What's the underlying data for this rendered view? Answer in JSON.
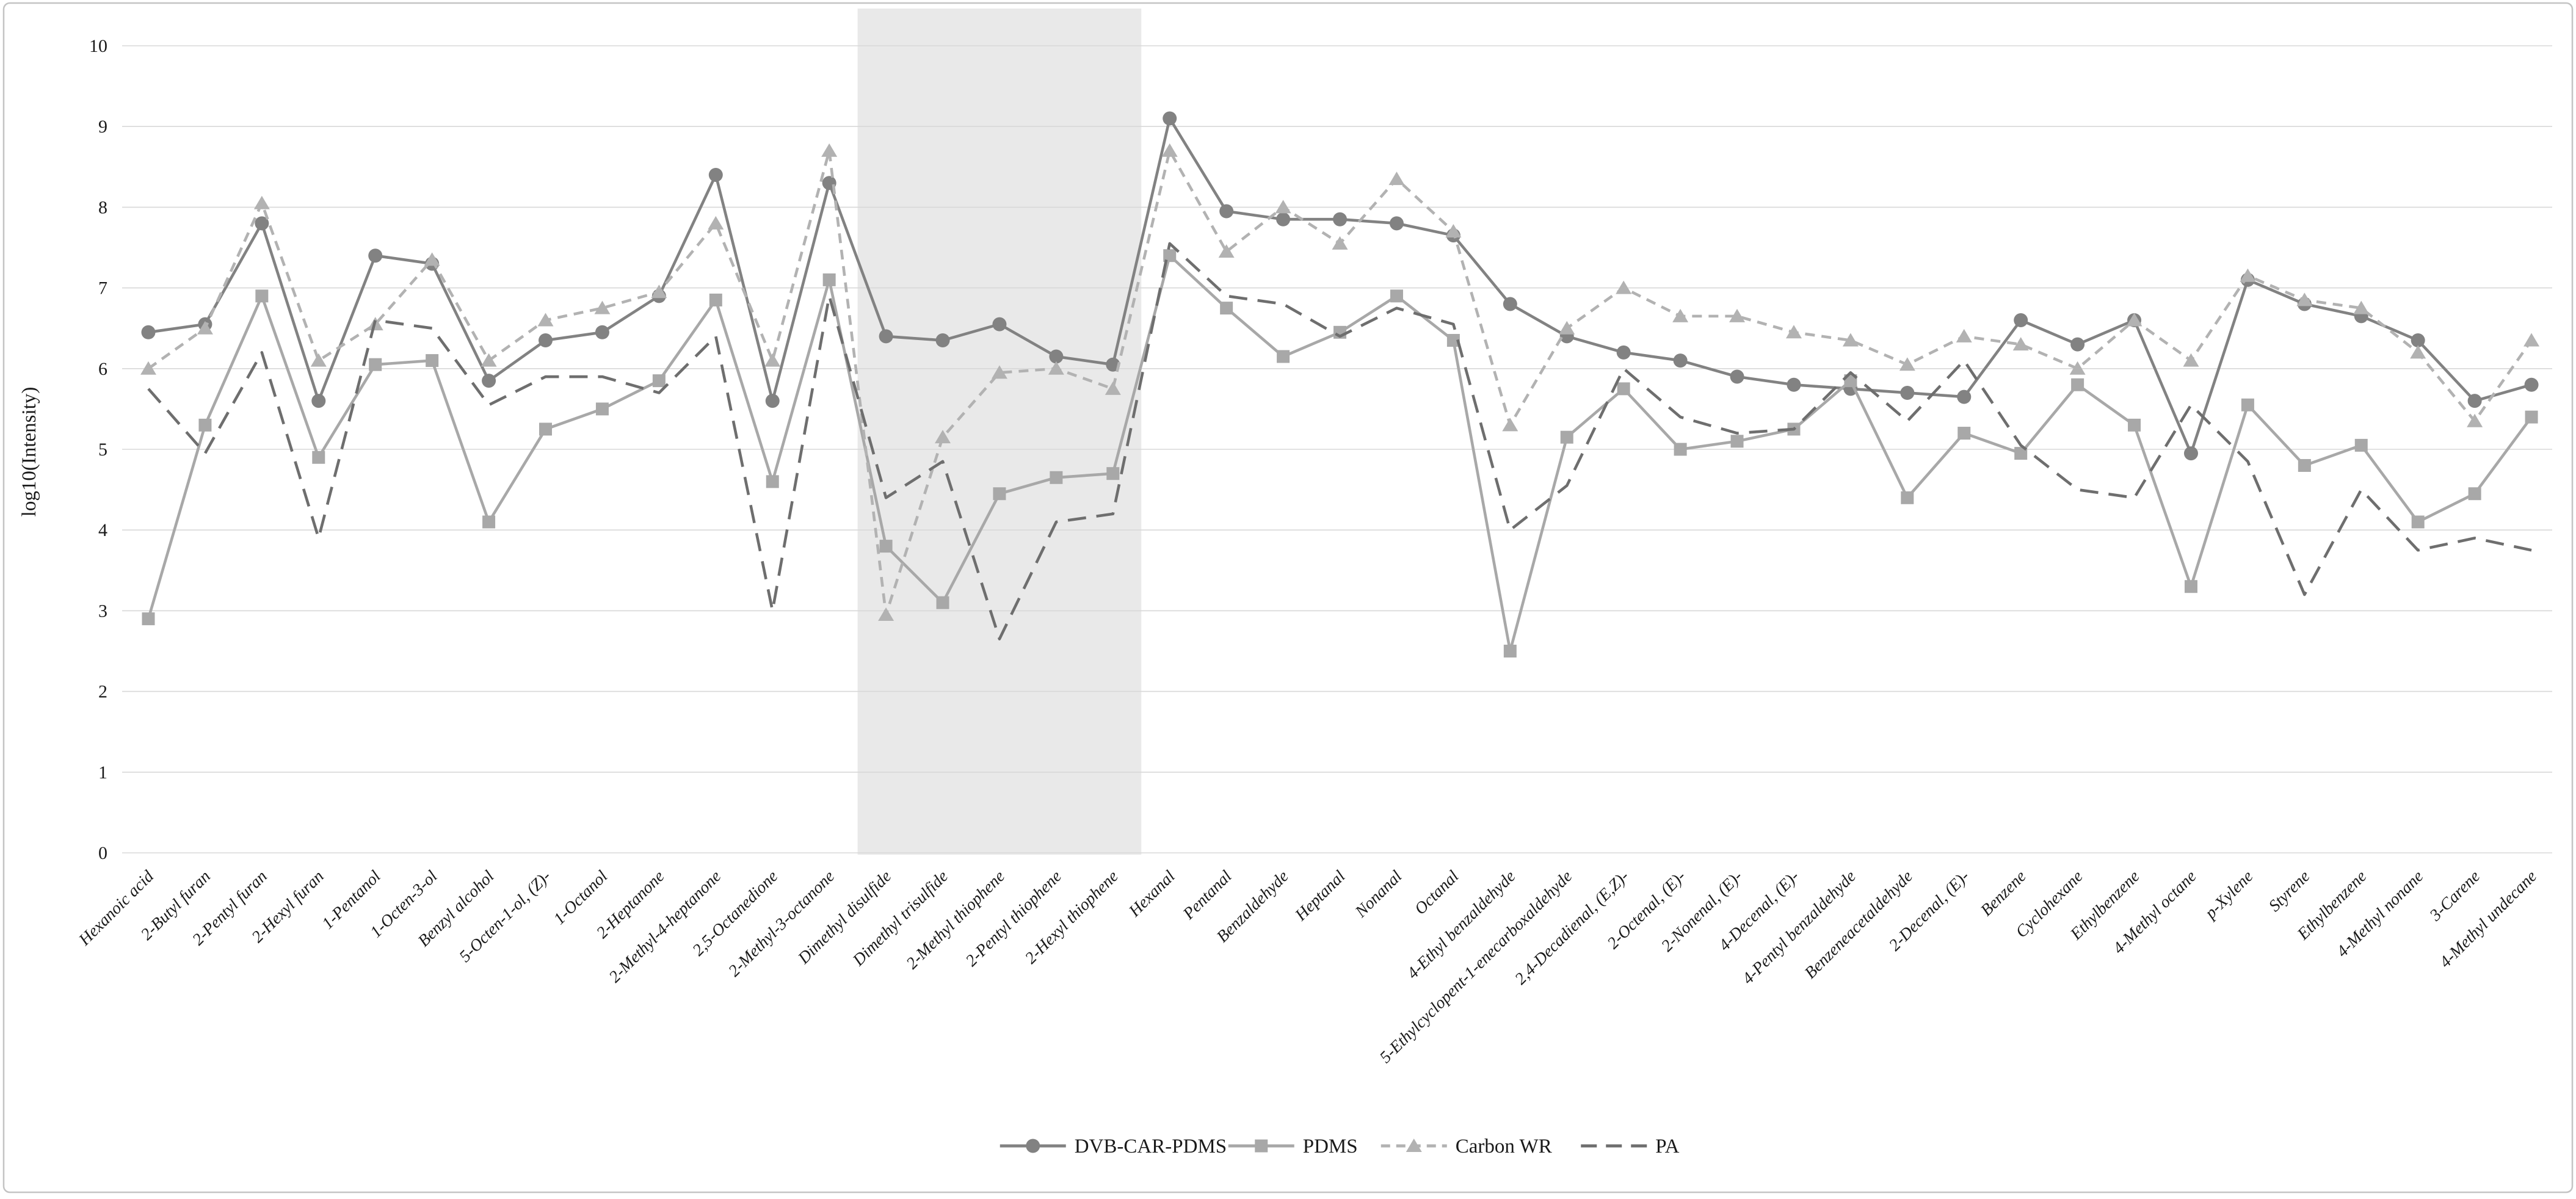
{
  "frame": {
    "border_color": "#c4c4c4",
    "background": "#ffffff"
  },
  "axes": {
    "y_title": "log10(Intensity)",
    "yticks": [
      0,
      1,
      2,
      3,
      4,
      5,
      6,
      7,
      8,
      9,
      10
    ],
    "grid_color": "#d8d8d8",
    "text_color": "#1a1a1a"
  },
  "highlight_band": {
    "color": "#e9e9e9",
    "from_category": "Dimethyl disulfide",
    "to_category": "2-Hexyl thiophene"
  },
  "chart_data": {
    "type": "line",
    "title": "",
    "xlabel": "",
    "ylabel": "log10(Intensity)",
    "ylim": [
      0,
      10
    ],
    "ytick_step": 1,
    "grid": "horizontal-only",
    "legend_position": "bottom-center",
    "categories": [
      "Hexanoic acid",
      "2-Butyl furan",
      "2-Pentyl furan",
      "2-Hexyl furan",
      "1-Pentanol",
      "1-Octen-3-ol",
      "Benzyl alcohol",
      "5-Octen-1-ol, (Z)-",
      "1-Octanol",
      "2-Heptanone",
      "2-Methyl-4-heptanone",
      "2,5-Octanedione",
      "2-Methyl-3-octanone",
      "Dimethyl disulfide",
      "Dimethyl trisulfide",
      "2-Methyl thiophene",
      "2-Pentyl thiophene",
      "2-Hexyl thiophene",
      "Hexanal",
      "Pentanal",
      "Benzaldehyde",
      "Heptanal",
      "Nonanal",
      "Octanal",
      "4-Ethyl benzaldehyde",
      "5-Ethylcyclopent-1-enecarboxaldehyde",
      "2,4-Decadienal, (E,Z)-",
      "2-Octenal, (E)-",
      "2-Nonenal, (E)-",
      "4-Decenal, (E)-",
      "4-Pentyl benzaldehyde",
      "Benzeneacetaldehyde",
      "2-Decenal, (E)-",
      "Benzene",
      "Cyclohexane",
      "Ethylbenzene",
      "4-Methyl octane",
      "p-Xylene",
      "Styrene",
      "Ethylbenzene",
      "4-Methyl nonane",
      "3-Carene",
      "4-Methyl undecane"
    ],
    "series": [
      {
        "name": "DVB-CAR-PDMS",
        "color": "#828282",
        "line": "solid",
        "marker": "circle",
        "values": [
          6.45,
          6.55,
          7.8,
          5.6,
          7.4,
          7.3,
          5.85,
          6.35,
          6.45,
          6.9,
          8.4,
          5.6,
          8.3,
          6.4,
          6.35,
          6.55,
          6.15,
          6.05,
          9.1,
          7.95,
          7.85,
          7.85,
          7.8,
          7.65,
          6.8,
          6.4,
          6.2,
          6.1,
          5.9,
          5.8,
          5.75,
          5.7,
          5.65,
          6.6,
          6.3,
          6.6,
          4.95,
          7.1,
          6.8,
          6.65,
          6.35,
          5.6,
          5.8
        ]
      },
      {
        "name": "PDMS",
        "color": "#a8a8a8",
        "line": "solid",
        "marker": "square",
        "values": [
          2.9,
          5.3,
          6.9,
          4.9,
          6.05,
          6.1,
          4.1,
          5.25,
          5.5,
          5.85,
          6.85,
          4.6,
          7.1,
          3.8,
          3.1,
          4.45,
          4.65,
          4.7,
          7.4,
          6.75,
          6.15,
          6.45,
          6.9,
          6.35,
          2.5,
          5.15,
          5.75,
          5.0,
          5.1,
          5.25,
          5.85,
          4.4,
          5.2,
          4.95,
          5.8,
          5.3,
          3.3,
          5.55,
          4.8,
          5.05,
          4.1,
          4.45,
          5.4
        ]
      },
      {
        "name": "Carbon WR",
        "color": "#b2b2b2",
        "line": "dashed-short",
        "marker": "triangle",
        "values": [
          6.0,
          6.5,
          8.05,
          6.1,
          6.55,
          7.35,
          6.1,
          6.6,
          6.75,
          6.95,
          7.8,
          6.1,
          8.7,
          2.95,
          5.15,
          5.95,
          6.0,
          5.75,
          8.7,
          7.45,
          8.0,
          7.55,
          8.35,
          7.7,
          5.3,
          6.5,
          7.0,
          6.65,
          6.65,
          6.45,
          6.35,
          6.05,
          6.4,
          6.3,
          6.0,
          6.6,
          6.1,
          7.15,
          6.85,
          6.75,
          6.2,
          5.35,
          6.35
        ]
      },
      {
        "name": "PA",
        "color": "#6e6e6e",
        "line": "dashed-long",
        "marker": "none",
        "values": [
          5.75,
          4.95,
          6.2,
          3.9,
          6.6,
          6.5,
          5.55,
          5.9,
          5.9,
          5.7,
          6.4,
          3.0,
          6.9,
          4.4,
          4.85,
          2.65,
          4.1,
          4.2,
          7.55,
          6.9,
          6.8,
          6.4,
          6.75,
          6.55,
          4.0,
          4.55,
          6.0,
          5.4,
          5.2,
          5.25,
          5.95,
          5.35,
          6.1,
          5.05,
          4.5,
          4.4,
          5.55,
          4.85,
          3.2,
          4.5,
          3.75,
          3.9,
          3.75
        ]
      }
    ]
  }
}
